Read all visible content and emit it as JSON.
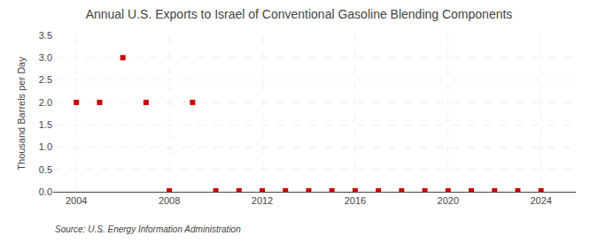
{
  "chart_data": {
    "type": "scatter",
    "title": "Annual U.S. Exports to Israel of Conventional Gasoline Blending Components",
    "ylabel": "Thousand Barrels per Day",
    "source": "Source: U.S. Energy Information Administration",
    "x": [
      2004,
      2005,
      2006,
      2007,
      2008,
      2009,
      2010,
      2011,
      2012,
      2013,
      2014,
      2015,
      2016,
      2017,
      2018,
      2019,
      2020,
      2021,
      2022,
      2023,
      2024
    ],
    "values": [
      2.0,
      2.0,
      3.0,
      2.0,
      0.02,
      2.0,
      0.02,
      0.02,
      0.02,
      0.02,
      0.02,
      0.02,
      0.02,
      0.02,
      0.02,
      0.02,
      0.02,
      0.02,
      0.02,
      0.02,
      0.02
    ],
    "color": "#cc0000",
    "marker": "square",
    "xlim": [
      2003.0,
      2025.5
    ],
    "ylim": [
      0.0,
      3.5
    ],
    "xticks": [
      2004,
      2008,
      2012,
      2016,
      2020,
      2024
    ],
    "yticks": [
      {
        "value": 0.0,
        "label": "0.0"
      },
      0.5,
      {
        "value": 1.0,
        "label": "1.0"
      },
      1.5,
      {
        "value": 2.0,
        "label": "2.0"
      },
      2.5,
      {
        "value": 3.0,
        "label": "3.0"
      },
      3.5
    ],
    "grid": true
  }
}
